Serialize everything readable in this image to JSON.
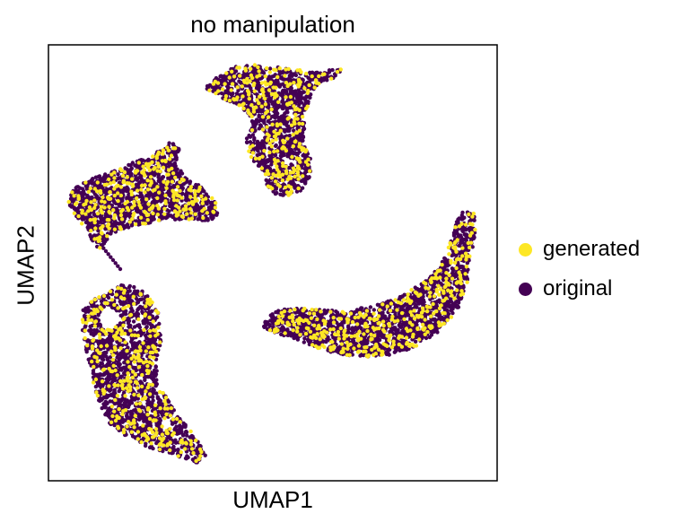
{
  "chart_data": {
    "type": "scatter",
    "title": "no manipulation",
    "xlabel": "UMAP1",
    "ylabel": "UMAP2",
    "xticks": "none",
    "yticks": "none",
    "grid": false,
    "legend_placement": "right-outside",
    "xlim": [
      0,
      100
    ],
    "ylim": [
      0,
      100
    ],
    "series": [
      {
        "name": "original",
        "color": "#440154"
      },
      {
        "name": "generated",
        "color": "#fde725"
      }
    ],
    "clusters": [
      {
        "region": "top-center",
        "x": [
          35,
          66
        ],
        "y": [
          66,
          95
        ],
        "description_points_approx": 1500
      },
      {
        "region": "left-middle",
        "x": [
          4,
          38
        ],
        "y": [
          50,
          77
        ]
      },
      {
        "region": "bottom-left",
        "x": [
          7,
          36
        ],
        "y": [
          3,
          42
        ]
      },
      {
        "region": "right",
        "x": [
          47,
          95
        ],
        "y": [
          28,
          59
        ]
      }
    ]
  },
  "legend": [
    {
      "label": "generated",
      "color": "#fde725"
    },
    {
      "label": "original",
      "color": "#440154"
    }
  ]
}
